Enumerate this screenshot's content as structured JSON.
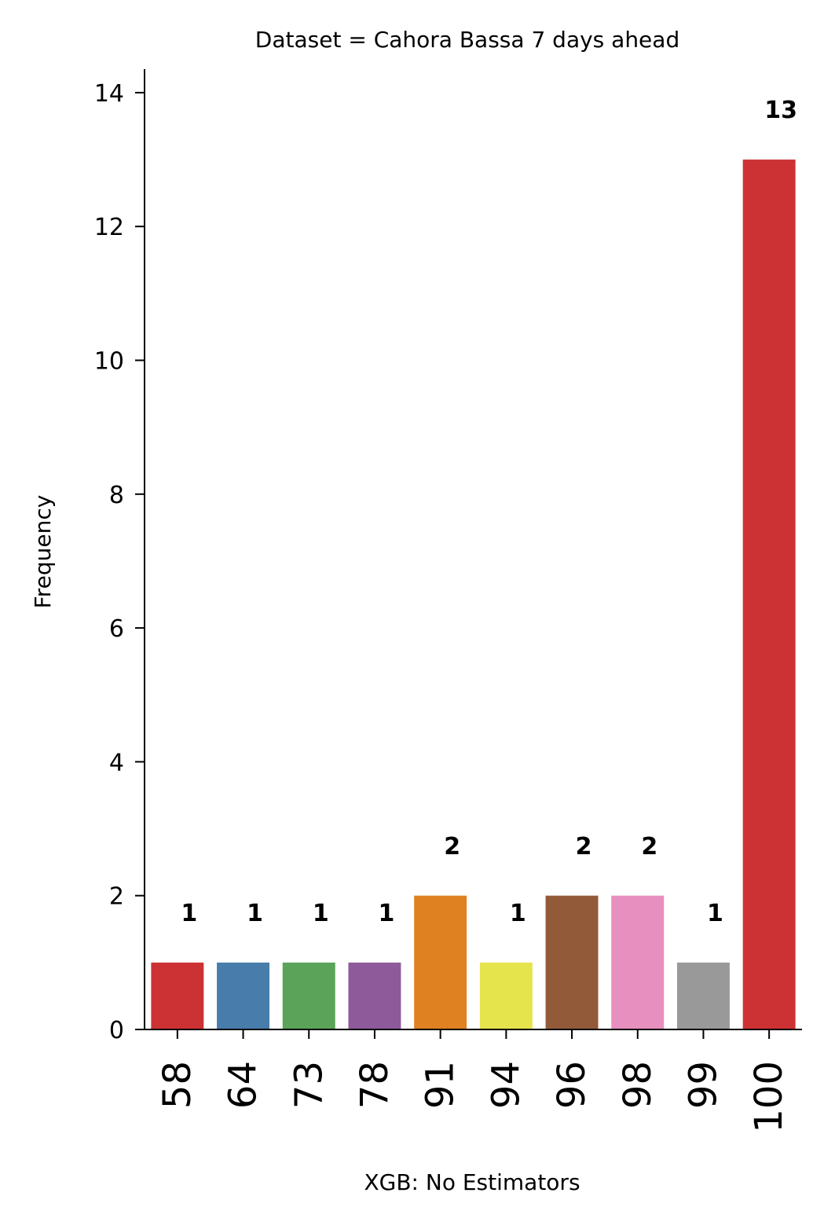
{
  "chart_data": {
    "type": "bar",
    "title": "Dataset = Cahora Bassa 7 days ahead",
    "xlabel": "XGB: No Estimators",
    "ylabel": "Frequency",
    "categories": [
      "58",
      "64",
      "73",
      "78",
      "91",
      "94",
      "96",
      "98",
      "99",
      "100"
    ],
    "values": [
      1,
      1,
      1,
      1,
      2,
      1,
      2,
      2,
      1,
      13
    ],
    "data_labels": [
      "1",
      "1",
      "1",
      "1",
      "2",
      "1",
      "2",
      "2",
      "1",
      "13"
    ],
    "colors": [
      "#cc3234",
      "#477cab",
      "#5aa358",
      "#8e5a9a",
      "#df8021",
      "#e6e44d",
      "#935a39",
      "#e78fbf",
      "#999999",
      "#cc3234"
    ],
    "yticks": [
      0,
      2,
      4,
      6,
      8,
      10,
      12,
      14
    ],
    "ylim": [
      0,
      14.35
    ],
    "grid": false,
    "legend": "none"
  }
}
